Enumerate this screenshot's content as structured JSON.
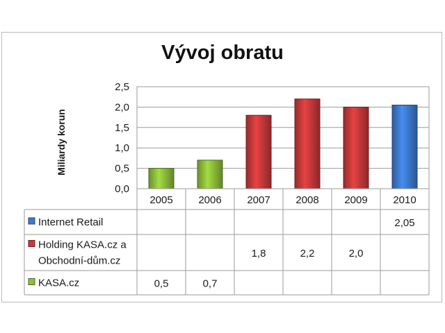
{
  "chart_data": {
    "type": "bar",
    "title": "Vývoj obratu",
    "ylabel": "Miliardy korun",
    "xlabel": "",
    "categories": [
      "2005",
      "2006",
      "2007",
      "2008",
      "2009",
      "2010"
    ],
    "ylim": [
      0,
      2.5
    ],
    "yticks": [
      "0,0",
      "0,5",
      "1,0",
      "1,5",
      "2,0",
      "2,5"
    ],
    "grid": true,
    "legend": "data-table",
    "series": [
      {
        "name": "Internet Retail",
        "color": "#3d7bd1",
        "values": [
          null,
          null,
          null,
          null,
          null,
          2.05
        ],
        "labels": [
          "",
          "",
          "",
          "",
          "",
          "2,05"
        ]
      },
      {
        "name_lines": [
          "Holding KASA.cz a",
          "Obchodní-dům.cz"
        ],
        "color": "#c9393a",
        "values": [
          null,
          null,
          1.8,
          2.2,
          2.0,
          null
        ],
        "labels": [
          "",
          "",
          "1,8",
          "2,2",
          "2,0",
          ""
        ]
      },
      {
        "name": "KASA.cz",
        "color": "#8fbf3a",
        "values": [
          0.5,
          0.7,
          null,
          null,
          null,
          null
        ],
        "labels": [
          "0,5",
          "0,7",
          "",
          "",
          "",
          ""
        ]
      }
    ]
  }
}
